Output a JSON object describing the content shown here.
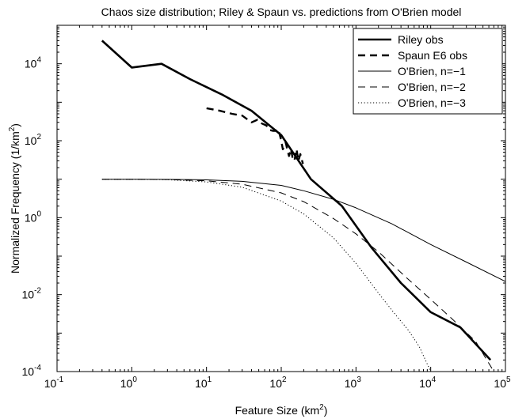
{
  "chart_data": {
    "type": "line",
    "title": "Chaos size distribution; Riley & Spaun vs. predictions from O'Brien model",
    "xlabel": {
      "base": "Feature Size (km",
      "sup": "2",
      "tail": ")"
    },
    "ylabel": {
      "base": "Normalized Frequency (1/km",
      "sup": "2",
      "tail": ")"
    },
    "xscale": "log",
    "yscale": "log",
    "xlim": [
      0.1,
      100000
    ],
    "ylim": [
      0.0001,
      100000
    ],
    "grid": false,
    "legend_position": "top-right",
    "x_ticks": [
      {
        "value": 0.1,
        "base": "10",
        "exp": "-1"
      },
      {
        "value": 1,
        "base": "10",
        "exp": "0"
      },
      {
        "value": 10,
        "base": "10",
        "exp": "1"
      },
      {
        "value": 100,
        "base": "10",
        "exp": "2"
      },
      {
        "value": 1000,
        "base": "10",
        "exp": "3"
      },
      {
        "value": 10000,
        "base": "10",
        "exp": "4"
      },
      {
        "value": 100000,
        "base": "10",
        "exp": "5"
      }
    ],
    "y_ticks": [
      {
        "value": 0.0001,
        "base": "10",
        "exp": "-4"
      },
      {
        "value": 0.01,
        "base": "10",
        "exp": "-2"
      },
      {
        "value": 1,
        "base": "10",
        "exp": "0"
      },
      {
        "value": 100,
        "base": "10",
        "exp": "2"
      },
      {
        "value": 10000,
        "base": "10",
        "exp": "4"
      }
    ],
    "series": [
      {
        "name": "Riley obs",
        "style": "solid",
        "width": 2.6,
        "color": "#000000",
        "x": [
          0.4,
          1.0,
          2.5,
          6,
          16,
          40,
          100,
          250,
          650,
          1600,
          4000,
          10000,
          25000,
          63000
        ],
        "y": [
          40000,
          8000,
          10000,
          4000,
          1600,
          600,
          140,
          10,
          2,
          0.17,
          0.02,
          0.0035,
          0.0014,
          0.0002
        ]
      },
      {
        "name": "Spaun E6 obs",
        "style": "dashed",
        "width": 2.4,
        "color": "#000000",
        "x": [
          10,
          15,
          22,
          30,
          40,
          48,
          55,
          63,
          70,
          78,
          85,
          90,
          95,
          100,
          105,
          110,
          115,
          120,
          127,
          135,
          142,
          150,
          160,
          170,
          180,
          195
        ],
        "y": [
          700,
          600,
          500,
          450,
          300,
          350,
          280,
          250,
          190,
          180,
          180,
          200,
          150,
          100,
          60,
          70,
          90,
          60,
          40,
          60,
          35,
          30,
          60,
          30,
          45,
          25
        ]
      },
      {
        "name": "O'Brien, n=−1",
        "style": "solid",
        "width": 1,
        "color": "#000000",
        "x": [
          0.4,
          1,
          3,
          10,
          30,
          100,
          200,
          500,
          1000,
          3000,
          10000,
          30000,
          100000
        ],
        "y": [
          10,
          10,
          9.9,
          9.6,
          8.8,
          6.9,
          5,
          3,
          1.8,
          0.7,
          0.2,
          0.07,
          0.022
        ]
      },
      {
        "name": "O'Brien, n=−2",
        "style": "dashed",
        "width": 1,
        "color": "#000000",
        "x": [
          0.4,
          1,
          3,
          10,
          30,
          100,
          200,
          500,
          1000,
          2000,
          5000,
          10000,
          20000,
          40000,
          70000
        ],
        "y": [
          10,
          10,
          9.8,
          9.1,
          7.4,
          4.4,
          2.6,
          0.95,
          0.38,
          0.13,
          0.025,
          0.0075,
          0.0022,
          0.0006,
          0.0001
        ]
      },
      {
        "name": "O'Brien, n=−3",
        "style": "dotted",
        "width": 1,
        "color": "#000000",
        "x": [
          0.4,
          1,
          3,
          10,
          30,
          100,
          200,
          500,
          1000,
          2000,
          3000,
          5000,
          7000,
          10000
        ],
        "y": [
          10,
          10,
          9.7,
          8.5,
          6.2,
          2.7,
          1.25,
          0.3,
          0.065,
          0.011,
          0.004,
          0.0012,
          0.00045,
          0.0001
        ]
      }
    ]
  }
}
